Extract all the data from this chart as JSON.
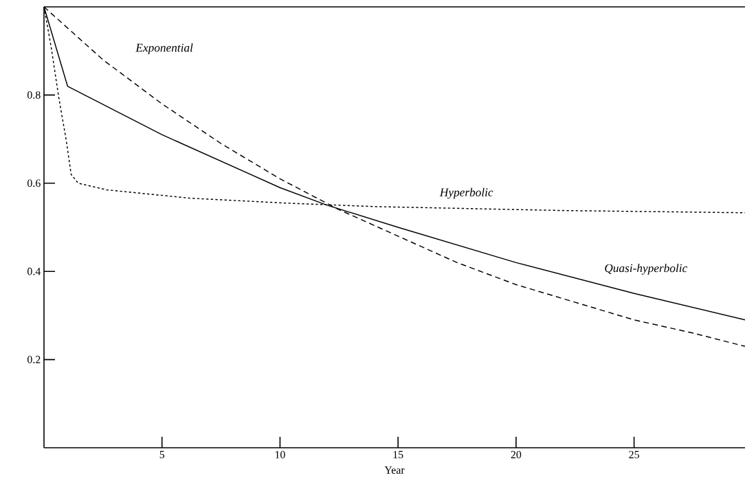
{
  "chart_data": {
    "type": "line",
    "xlabel": "Year",
    "xlim": [
      0,
      29.7
    ],
    "ylim": [
      0,
      1
    ],
    "xticks": [
      5,
      10,
      15,
      20,
      25
    ],
    "yticks": [
      0.2,
      0.4,
      0.6,
      0.8
    ],
    "grid": false,
    "legend": false,
    "marker": "none",
    "series": [
      {
        "name": "Exponential",
        "color": "#000000",
        "line_style": "dashed",
        "x": [
          0,
          2.5,
          5,
          7.5,
          10,
          12.5,
          15,
          17.5,
          20,
          22.5,
          25,
          27.5,
          29.7
        ],
        "values": [
          1,
          0.88,
          0.78,
          0.69,
          0.61,
          0.54,
          0.48,
          0.42,
          0.37,
          0.33,
          0.29,
          0.26,
          0.23
        ]
      },
      {
        "name": "Hyperbolic",
        "color": "#000000",
        "line_style": "dotted",
        "x": [
          0,
          0.3,
          0.64,
          0.95,
          1.15,
          1.45,
          2.65,
          6.2,
          10.2,
          14,
          22,
          29.7
        ],
        "values": [
          1,
          0.91,
          0.79,
          0.695,
          0.62,
          0.6,
          0.585,
          0.566,
          0.555,
          0.547,
          0.538,
          0.533
        ]
      },
      {
        "name": "Quasi-hyperbolic",
        "color": "#000000",
        "line_style": "solid",
        "x": [
          0,
          1,
          5,
          10,
          12,
          15,
          20,
          25,
          29.7
        ],
        "values": [
          1,
          0.82,
          0.71,
          0.59,
          0.55,
          0.5,
          0.42,
          0.35,
          0.29
        ]
      }
    ]
  }
}
